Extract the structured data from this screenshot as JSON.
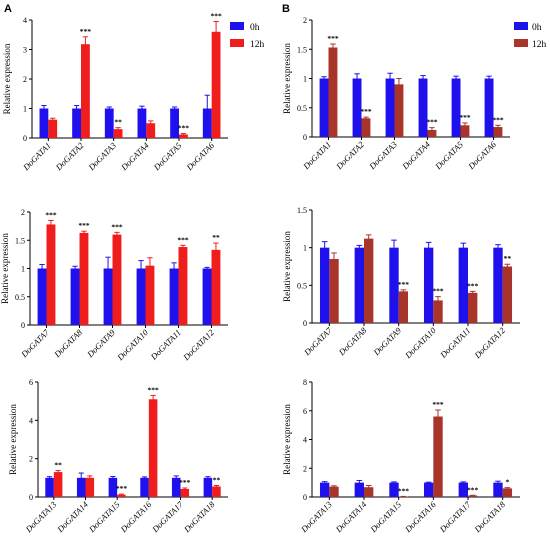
{
  "figure": {
    "panel_labels": [
      "A",
      "B"
    ],
    "legend": {
      "entries": [
        {
          "label": "0h",
          "color": "#1f10ee"
        },
        {
          "label": "12h",
          "color_a": "#f01d1d",
          "color_b": "#a8342a"
        }
      ]
    },
    "colors": {
      "zero_h": "#1f10ee",
      "twelve_h_panel_a": "#f01d1d",
      "twelve_h_panel_b": "#a8342a",
      "axis": "#000000"
    }
  },
  "chart_data": [
    {
      "id": "A-top",
      "type": "bar",
      "panel": "A",
      "ylabel": "Relative expression",
      "ylim": [
        0,
        4
      ],
      "yticks": [
        0,
        1,
        2,
        3,
        4
      ],
      "categories": [
        "DoGATA1",
        "DoGATA2",
        "DoGATA3",
        "DoGATA4",
        "DoGATA5",
        "DoGATA6"
      ],
      "series": [
        {
          "name": "0h",
          "values": [
            1.0,
            1.0,
            1.0,
            1.0,
            1.0,
            1.0
          ],
          "errors": [
            0.1,
            0.1,
            0.05,
            0.08,
            0.05,
            0.45
          ]
        },
        {
          "name": "12h",
          "values": [
            0.62,
            3.18,
            0.3,
            0.5,
            0.12,
            3.6
          ],
          "errors": [
            0.05,
            0.25,
            0.05,
            0.08,
            0.03,
            0.35
          ]
        }
      ],
      "significance": [
        "",
        "***",
        "**",
        "",
        "***",
        "***"
      ]
    },
    {
      "id": "B-top",
      "type": "bar",
      "panel": "B",
      "ylabel": "Relative expression",
      "ylim": [
        0,
        2.0
      ],
      "yticks": [
        0.0,
        0.5,
        1.0,
        1.5,
        2.0
      ],
      "categories": [
        "DoGATA1",
        "DoGATA2",
        "DoGATA3",
        "DoGATA4",
        "DoGATA5",
        "DoGATA6"
      ],
      "series": [
        {
          "name": "0h",
          "values": [
            1.0,
            1.0,
            1.0,
            1.0,
            1.0,
            1.0
          ],
          "errors": [
            0.03,
            0.08,
            0.09,
            0.05,
            0.04,
            0.04
          ]
        },
        {
          "name": "12h",
          "values": [
            1.53,
            0.32,
            0.9,
            0.12,
            0.2,
            0.17
          ],
          "errors": [
            0.06,
            0.02,
            0.1,
            0.04,
            0.04,
            0.03
          ]
        }
      ],
      "significance": [
        "***",
        "***",
        "",
        "***",
        "***",
        "***"
      ]
    },
    {
      "id": "A-mid",
      "type": "bar",
      "panel": "A",
      "ylabel": "Relative expression",
      "ylim": [
        0,
        2.0
      ],
      "yticks": [
        0.0,
        0.5,
        1.0,
        1.5,
        2.0
      ],
      "categories": [
        "DoGATA7",
        "DoGATA8",
        "DoGATA9",
        "DoGATA10",
        "DoGATA11",
        "DoGATA12"
      ],
      "series": [
        {
          "name": "0h",
          "values": [
            1.0,
            1.0,
            1.0,
            1.0,
            1.0,
            1.0
          ],
          "errors": [
            0.07,
            0.04,
            0.2,
            0.14,
            0.1,
            0.02
          ]
        },
        {
          "name": "12h",
          "values": [
            1.78,
            1.63,
            1.6,
            1.05,
            1.38,
            1.33
          ],
          "errors": [
            0.07,
            0.03,
            0.04,
            0.14,
            0.03,
            0.12
          ]
        }
      ],
      "significance": [
        "***",
        "***",
        "***",
        "",
        "***",
        "**"
      ]
    },
    {
      "id": "B-mid",
      "type": "bar",
      "panel": "B",
      "ylabel": "Relative expression",
      "ylim": [
        0,
        1.5
      ],
      "yticks": [
        0.0,
        0.5,
        1.0,
        1.5
      ],
      "categories": [
        "DoGATA7",
        "DoGATA8",
        "DoGATA9",
        "DoGATA10",
        "DoGATA11",
        "DoGATA12"
      ],
      "series": [
        {
          "name": "0h",
          "values": [
            1.0,
            1.0,
            1.0,
            1.0,
            1.0,
            1.0
          ],
          "errors": [
            0.08,
            0.03,
            0.1,
            0.07,
            0.06,
            0.04
          ]
        },
        {
          "name": "12h",
          "values": [
            0.85,
            1.12,
            0.42,
            0.3,
            0.4,
            0.75
          ],
          "errors": [
            0.08,
            0.05,
            0.02,
            0.05,
            0.02,
            0.03
          ]
        }
      ],
      "significance": [
        "",
        "",
        "***",
        "***",
        "***",
        "**"
      ]
    },
    {
      "id": "A-bot",
      "type": "bar",
      "panel": "A",
      "ylabel": "Relative expression",
      "ylim": [
        0,
        6
      ],
      "yticks": [
        0,
        2,
        4,
        6
      ],
      "categories": [
        "DoGATA13",
        "DoGATA14",
        "DoGATA15",
        "DoGATA16",
        "DoGATA17",
        "DoGATA18"
      ],
      "series": [
        {
          "name": "0h",
          "values": [
            1.0,
            1.0,
            1.0,
            1.0,
            1.0,
            1.0
          ],
          "errors": [
            0.06,
            0.25,
            0.07,
            0.05,
            0.1,
            0.06
          ]
        },
        {
          "name": "12h",
          "values": [
            1.3,
            1.0,
            0.12,
            5.1,
            0.42,
            0.55
          ],
          "errors": [
            0.08,
            0.1,
            0.03,
            0.2,
            0.05,
            0.05
          ]
        }
      ],
      "significance": [
        "**",
        "",
        "***",
        "***",
        "***",
        "**"
      ]
    },
    {
      "id": "B-bot",
      "type": "bar",
      "panel": "B",
      "ylabel": "Relative expression",
      "ylim": [
        0,
        8
      ],
      "yticks": [
        0,
        2,
        4,
        6,
        8
      ],
      "categories": [
        "DoGATA13",
        "DoGATA14",
        "DoGATA15",
        "DoGATA16",
        "DoGATA17",
        "DoGATA18"
      ],
      "series": [
        {
          "name": "0h",
          "values": [
            1.0,
            1.0,
            1.0,
            1.0,
            1.0,
            1.0
          ],
          "errors": [
            0.07,
            0.15,
            0.05,
            0.03,
            0.05,
            0.1
          ]
        },
        {
          "name": "12h",
          "values": [
            0.72,
            0.68,
            0.03,
            5.6,
            0.1,
            0.6
          ],
          "errors": [
            0.06,
            0.12,
            0.01,
            0.45,
            0.02,
            0.05
          ]
        }
      ],
      "significance": [
        "",
        "",
        "***",
        "***",
        "***",
        "*"
      ]
    }
  ]
}
